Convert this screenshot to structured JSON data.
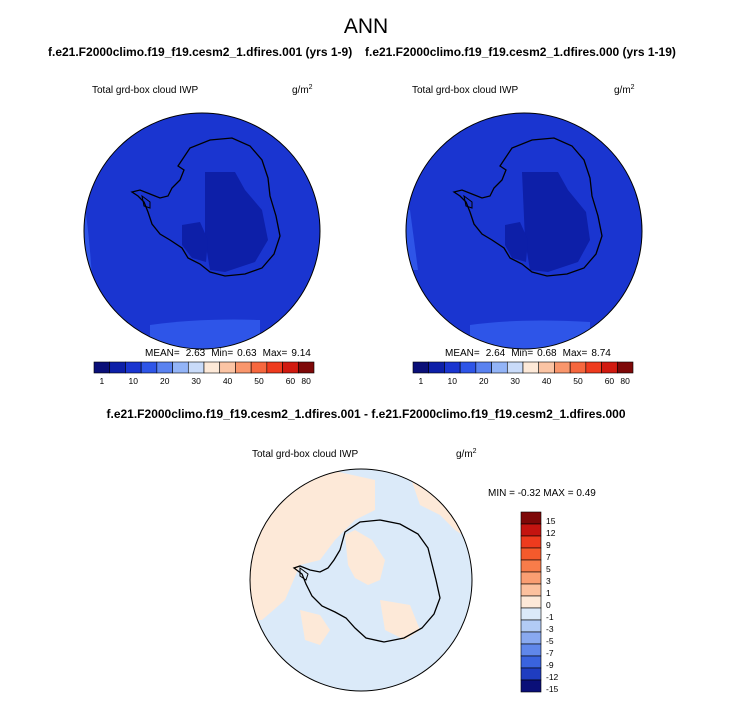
{
  "title": "ANN",
  "panels": [
    {
      "case": "f.e21.F2000climo.f19_f19.cesm2_1.dfires.001 (yrs 1-9)",
      "variable": "Total grd-box cloud IWP",
      "units": "g/m",
      "units_exp": "2",
      "stats": {
        "mean_label": "MEAN=",
        "mean": "2.63",
        "min_label": "Min=",
        "min": "0.63",
        "max_label": "Max=",
        "max": "9.14"
      }
    },
    {
      "case": "f.e21.F2000climo.f19_f19.cesm2_1.dfires.000 (yrs 1-19)",
      "variable": "Total grd-box cloud IWP",
      "units": "g/m",
      "units_exp": "2",
      "stats": {
        "mean_label": "MEAN=",
        "mean": "2.64",
        "min_label": "Min=",
        "min": "0.68",
        "max_label": "Max=",
        "max": "8.74"
      }
    }
  ],
  "diff": {
    "case": "f.e21.F2000climo.f19_f19.cesm2_1.dfires.001 - f.e21.F2000climo.f19_f19.cesm2_1.dfires.000",
    "variable": "Total grd-box cloud IWP",
    "units": "g/m",
    "units_exp": "2",
    "stats": "MIN =  -0.32 MAX =   0.49"
  },
  "colorbar": {
    "colors": [
      "#0a0f78",
      "#0d1fa8",
      "#1a35d0",
      "#2e55e8",
      "#5a82f0",
      "#93b4f7",
      "#c9dbf9",
      "#fde9d8",
      "#fbc4a4",
      "#f9966c",
      "#f6673e",
      "#ef3b1e",
      "#d11a10",
      "#7e0808"
    ],
    "labels": [
      "1",
      "10",
      "20",
      "30",
      "40",
      "50",
      "60",
      "80"
    ]
  },
  "diff_colorbar": {
    "colors": [
      "#7e0808",
      "#c41410",
      "#ee3b1e",
      "#f55a2c",
      "#f87c4a",
      "#fa9e72",
      "#fcc19e",
      "#fde9d8",
      "#dbeaf9",
      "#b2cbf5",
      "#89a9f0",
      "#6087ea",
      "#3a63de",
      "#1f3dc0",
      "#0a0f78"
    ],
    "labels": [
      "15",
      "12",
      "9",
      "7",
      "5",
      "3",
      "1",
      "0",
      "-1",
      "-3",
      "-5",
      "-7",
      "-9",
      "-12",
      "-15"
    ]
  },
  "colors": {
    "ocean_dark": "#1a35d0",
    "ocean_mid": "#2e55e8",
    "core_dark": "#0d1fa8",
    "diff_pos": "#fde9d8",
    "diff_neg": "#dbeaf9"
  }
}
